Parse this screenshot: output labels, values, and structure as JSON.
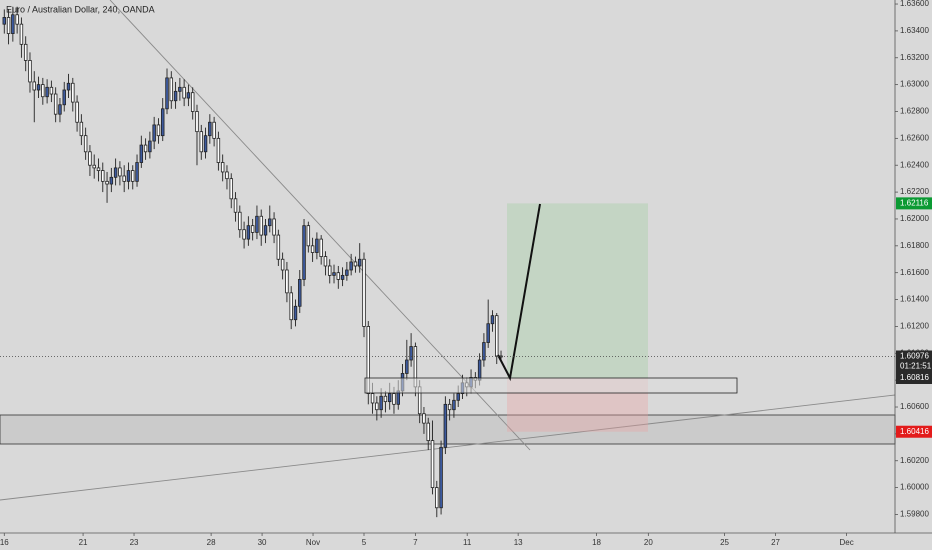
{
  "chart_data": {
    "type": "candlestick",
    "title": "Euro / Australian Dollar, 240, OANDA",
    "open": [
      1.6345,
      1.635,
      1.6338,
      1.6352,
      1.6345,
      1.633,
      1.6318,
      1.6302,
      1.6296,
      1.63,
      1.6291,
      1.6298,
      1.6293,
      1.6278,
      1.6285,
      1.6296,
      1.6301,
      1.6287,
      1.6272,
      1.6262,
      1.625,
      1.624,
      1.6238,
      1.6236,
      1.6228,
      1.6226,
      1.6231,
      1.6238,
      1.6232,
      1.6228,
      1.6236,
      1.6228,
      1.6242,
      1.6255,
      1.625,
      1.6258,
      1.627,
      1.6262,
      1.6282,
      1.6305,
      1.6288,
      1.6295,
      1.6298,
      1.629,
      1.6294,
      1.628,
      1.6265,
      1.625,
      1.6262,
      1.6272,
      1.626,
      1.6242,
      1.6235,
      1.623,
      1.6215,
      1.6205,
      1.6192,
      1.6185,
      1.6195,
      1.619,
      1.6202,
      1.6188,
      1.6195,
      1.62,
      1.6188,
      1.617,
      1.6162,
      1.6145,
      1.6125,
      1.6135,
      1.6155,
      1.6195,
      1.618,
      1.6175,
      1.6185,
      1.6172,
      1.6165,
      1.6158,
      1.616,
      1.6155,
      1.6158,
      1.6162,
      1.6168,
      1.6165,
      1.617,
      1.612,
      1.607,
      1.6063,
      1.6058,
      1.6068,
      1.6064,
      1.607,
      1.6062,
      1.6072,
      1.6085,
      1.6095,
      1.6105,
      1.6075,
      1.6055,
      1.6048,
      1.6035,
      1.6,
      1.5985,
      1.603,
      1.6062,
      1.6058,
      1.6065,
      1.607,
      1.6078,
      1.6075,
      1.6082,
      1.608,
      1.6095,
      1.6108,
      1.6122,
      1.6128,
      1.6098
    ],
    "high": [
      1.6356,
      1.6356,
      1.6358,
      1.6358,
      1.635,
      1.6336,
      1.6324,
      1.631,
      1.6306,
      1.6305,
      1.6304,
      1.6303,
      1.6298,
      1.629,
      1.6302,
      1.6308,
      1.6305,
      1.6292,
      1.6278,
      1.6268,
      1.6255,
      1.6248,
      1.6245,
      1.6242,
      1.6235,
      1.6238,
      1.6245,
      1.6243,
      1.624,
      1.6242,
      1.624,
      1.6248,
      1.6262,
      1.626,
      1.6265,
      1.6276,
      1.6275,
      1.629,
      1.6312,
      1.631,
      1.6302,
      1.6305,
      1.6304,
      1.63,
      1.6298,
      1.6285,
      1.627,
      1.6268,
      1.6278,
      1.6276,
      1.6265,
      1.6248,
      1.624,
      1.6234,
      1.622,
      1.621,
      1.6198,
      1.6202,
      1.62,
      1.621,
      1.6207,
      1.62,
      1.621,
      1.6205,
      1.6192,
      1.6175,
      1.6168,
      1.615,
      1.614,
      1.6162,
      1.62,
      1.6198,
      1.6186,
      1.619,
      1.6188,
      1.6176,
      1.617,
      1.6166,
      1.6165,
      1.6164,
      1.6168,
      1.6174,
      1.6172,
      1.6182,
      1.6175,
      1.6124,
      1.6078,
      1.6068,
      1.6074,
      1.6072,
      1.6078,
      1.6075,
      1.608,
      1.6092,
      1.611,
      1.6115,
      1.6108,
      1.608,
      1.606,
      1.6052,
      1.605,
      1.6005,
      1.6035,
      1.6068,
      1.6066,
      1.607,
      1.6076,
      1.6084,
      1.6082,
      1.6088,
      1.6086,
      1.61,
      1.6115,
      1.614,
      1.6132,
      1.613,
      1.6102
    ],
    "low": [
      1.6338,
      1.633,
      1.6332,
      1.6338,
      1.632,
      1.631,
      1.6294,
      1.6272,
      1.629,
      1.6285,
      1.6286,
      1.6287,
      1.6272,
      1.6272,
      1.628,
      1.629,
      1.628,
      1.6265,
      1.6255,
      1.6244,
      1.6232,
      1.623,
      1.6228,
      1.622,
      1.6212,
      1.622,
      1.6225,
      1.6225,
      1.622,
      1.6222,
      1.6222,
      1.6224,
      1.6238,
      1.6244,
      1.6245,
      1.6252,
      1.6256,
      1.6258,
      1.6278,
      1.6282,
      1.6282,
      1.6288,
      1.6284,
      1.6284,
      1.6274,
      1.624,
      1.6244,
      1.6245,
      1.6256,
      1.6254,
      1.6236,
      1.6228,
      1.6222,
      1.6208,
      1.6198,
      1.6186,
      1.6178,
      1.618,
      1.6184,
      1.6185,
      1.618,
      1.6182,
      1.619,
      1.6182,
      1.6165,
      1.6155,
      1.6138,
      1.6118,
      1.612,
      1.613,
      1.615,
      1.6175,
      1.6168,
      1.617,
      1.6166,
      1.6158,
      1.6152,
      1.6152,
      1.6148,
      1.615,
      1.6154,
      1.6158,
      1.616,
      1.616,
      1.6112,
      1.6062,
      1.6055,
      1.605,
      1.6052,
      1.6056,
      1.6058,
      1.6055,
      1.6058,
      1.6068,
      1.608,
      1.609,
      1.6068,
      1.6048,
      1.604,
      1.6028,
      1.5995,
      1.5978,
      1.598,
      1.6025,
      1.605,
      1.6052,
      1.606,
      1.6066,
      1.6068,
      1.607,
      1.6074,
      1.6076,
      1.609,
      1.6104,
      1.6116,
      1.6092,
      1.6094
    ],
    "close": [
      1.635,
      1.6338,
      1.6352,
      1.6345,
      1.633,
      1.6318,
      1.6302,
      1.6296,
      1.63,
      1.6291,
      1.6298,
      1.6293,
      1.6278,
      1.6285,
      1.6296,
      1.6301,
      1.6287,
      1.6272,
      1.6262,
      1.625,
      1.624,
      1.6238,
      1.6236,
      1.6228,
      1.6226,
      1.6231,
      1.6238,
      1.6232,
      1.6228,
      1.6236,
      1.6228,
      1.6242,
      1.6255,
      1.625,
      1.6258,
      1.627,
      1.6262,
      1.6282,
      1.6305,
      1.6288,
      1.6295,
      1.6298,
      1.629,
      1.6294,
      1.628,
      1.6265,
      1.625,
      1.6262,
      1.6272,
      1.626,
      1.6242,
      1.6235,
      1.623,
      1.6215,
      1.6205,
      1.6192,
      1.6185,
      1.6195,
      1.619,
      1.6202,
      1.6188,
      1.6195,
      1.62,
      1.6188,
      1.617,
      1.6162,
      1.6145,
      1.6125,
      1.6135,
      1.6155,
      1.6195,
      1.618,
      1.6175,
      1.6185,
      1.6172,
      1.6165,
      1.6158,
      1.616,
      1.6155,
      1.6158,
      1.6162,
      1.6168,
      1.6165,
      1.617,
      1.612,
      1.607,
      1.6063,
      1.6058,
      1.6068,
      1.6064,
      1.607,
      1.6062,
      1.6072,
      1.6085,
      1.6095,
      1.6105,
      1.6075,
      1.6055,
      1.6048,
      1.6035,
      1.6,
      1.5985,
      1.603,
      1.6062,
      1.6058,
      1.6065,
      1.607,
      1.6078,
      1.6075,
      1.6082,
      1.608,
      1.6095,
      1.6108,
      1.6122,
      1.6128,
      1.6098,
      1.60976
    ],
    "up_color": "#3d5a9e",
    "down_color": "#ffffff",
    "xlim": [
      -1,
      208
    ],
    "ylim": [
      1.5961,
      1.6363
    ],
    "xticks": [
      {
        "value": 0,
        "label": "16"
      },
      {
        "value": 18.4,
        "label": "21"
      },
      {
        "value": 30.3,
        "label": "23"
      },
      {
        "value": 48.3,
        "label": "28"
      },
      {
        "value": 60.2,
        "label": "30"
      },
      {
        "value": 72.1,
        "label": "Nov"
      },
      {
        "value": 84,
        "label": "5"
      },
      {
        "value": 96,
        "label": "7"
      },
      {
        "value": 108.1,
        "label": "11"
      },
      {
        "value": 120,
        "label": "13"
      },
      {
        "value": 138.3,
        "label": "18"
      },
      {
        "value": 150.4,
        "label": "20"
      },
      {
        "value": 168.2,
        "label": "25"
      },
      {
        "value": 180.1,
        "label": "27"
      },
      {
        "value": 196.7,
        "label": "Dec"
      }
    ],
    "yticks": [
      {
        "value": 1.598,
        "label": "1.59800"
      },
      {
        "value": 1.6,
        "label": "1.60000"
      },
      {
        "value": 1.602,
        "label": "1.60200"
      },
      {
        "value": 1.604,
        "label": "1.60400"
      },
      {
        "value": 1.606,
        "label": "1.60600"
      },
      {
        "value": 1.608,
        "label": "1.60800"
      },
      {
        "value": 1.61,
        "label": "1.61000"
      },
      {
        "value": 1.612,
        "label": "1.61200"
      },
      {
        "value": 1.614,
        "label": "1.61400"
      },
      {
        "value": 1.616,
        "label": "1.61600"
      },
      {
        "value": 1.618,
        "label": "1.61800"
      },
      {
        "value": 1.62,
        "label": "1.62000"
      },
      {
        "value": 1.622,
        "label": "1.62200"
      },
      {
        "value": 1.624,
        "label": "1.62400"
      },
      {
        "value": 1.626,
        "label": "1.62600"
      },
      {
        "value": 1.628,
        "label": "1.62800"
      },
      {
        "value": 1.63,
        "label": "1.63000"
      },
      {
        "value": 1.632,
        "label": "1.63200"
      },
      {
        "value": 1.634,
        "label": "1.63400"
      },
      {
        "value": 1.636,
        "label": "1.63600"
      }
    ],
    "price_labels": [
      {
        "value": 1.62116,
        "color": "#0b9a33"
      },
      {
        "value": 1.60976,
        "color": "#2a2a2a",
        "countdown": "01:21:51"
      },
      {
        "value": 1.60816,
        "color": "#2a2a2a"
      },
      {
        "value": 1.60416,
        "color": "#e31b1b"
      }
    ]
  }
}
